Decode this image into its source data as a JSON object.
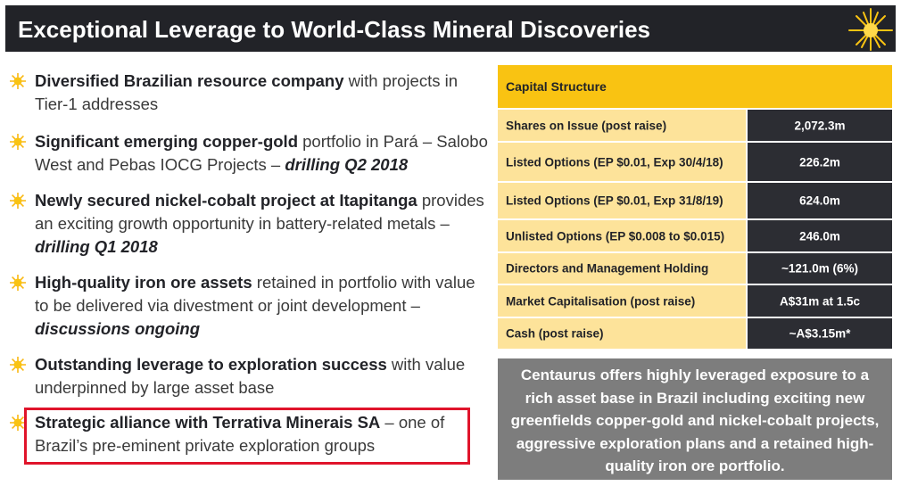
{
  "header": {
    "title": "Exceptional Leverage to World-Class Mineral Discoveries",
    "accent_color": "#f9c312",
    "bar_color": "#222328"
  },
  "bullets": [
    {
      "bold": "Diversified Brazilian resource company",
      "text": " with projects in Tier-1 addresses",
      "emph": ""
    },
    {
      "bold": "Significant emerging copper-gold",
      "text": " portfolio in Pará – Salobo West and Pebas IOCG Projects – ",
      "emph": "drilling Q2 2018"
    },
    {
      "bold": "Newly secured nickel-cobalt project at Itapitanga",
      "text": " provides an exciting growth opportunity in battery-related metals – ",
      "emph": "drilling Q1 2018"
    },
    {
      "bold": "High-quality iron ore assets",
      "text": " retained in portfolio with value to be delivered via divestment or joint development – ",
      "emph": "discussions ongoing"
    },
    {
      "bold": "Outstanding leverage to exploration success",
      "text": " with value underpinned by large asset base",
      "emph": ""
    },
    {
      "bold": "Strategic alliance with Terrativa Minerais SA",
      "text": " – one of Brazil’s pre-eminent private exploration groups",
      "emph": ""
    }
  ],
  "capital_structure": {
    "title": "Capital Structure",
    "rows": [
      {
        "label": "Shares on Issue (post raise)",
        "value": "2,072.3m"
      },
      {
        "label": "Listed Options (EP $0.01, Exp 30/4/18)",
        "value": "226.2m"
      },
      {
        "label": "Listed Options (EP $0.01, Exp 31/8/19)",
        "value": "624.0m"
      },
      {
        "label": "Unlisted Options  (EP $0.008 to $0.015)",
        "value": "246.0m"
      },
      {
        "label": "Directors and Management Holding",
        "value": "~121.0m (6%)"
      },
      {
        "label": "Market Capitalisation (post raise)",
        "value": "A$31m at 1.5c"
      },
      {
        "label": "Cash (post raise)",
        "value": "~A$3.15m*"
      }
    ]
  },
  "summary": {
    "text": "Centaurus offers highly leveraged exposure to a rich asset base in Brazil including exciting new greenfields copper-gold and nickel-cobalt projects, aggressive exploration plans and a retained high-quality iron ore portfolio."
  },
  "icons": {
    "bullet": "sun-burst-icon",
    "header": "star-burst-icon"
  }
}
